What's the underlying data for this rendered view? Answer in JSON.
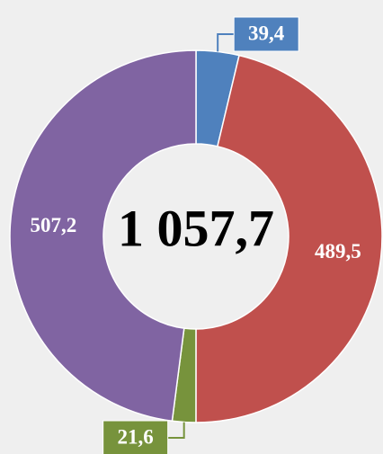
{
  "chart_data": {
    "type": "donut",
    "categories": [
      null,
      null,
      null,
      null
    ],
    "values": [
      39.4,
      489.5,
      21.6,
      507.2
    ],
    "value_labels": [
      "39,4",
      "489,5",
      "21,6",
      "507,2"
    ],
    "colors": [
      "#4f81bd",
      "#c0504d",
      "#77933c",
      "#8064a2"
    ],
    "center_label": "1 057,7"
  }
}
